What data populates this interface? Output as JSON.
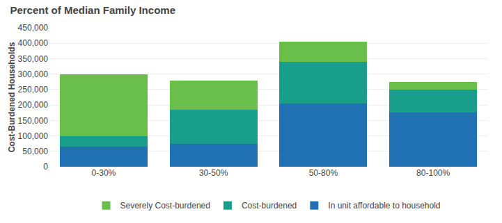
{
  "chart_data": {
    "type": "bar",
    "stacked": true,
    "title": "Percent of Median Family Income",
    "ylabel": "Cost-Burdened Households",
    "categories": [
      "0-30%",
      "30-50%",
      "50-80%",
      "80-100%"
    ],
    "series": [
      {
        "name": "In unit affordable to household",
        "color": "#2070b4",
        "values": [
          65000,
          75000,
          205000,
          175000
        ]
      },
      {
        "name": "Cost-burdened",
        "color": "#1a9e8c",
        "values": [
          35000,
          110000,
          135000,
          75000
        ]
      },
      {
        "name": "Severely Cost-burdened",
        "color": "#6abf4b",
        "values": [
          200000,
          95000,
          65000,
          25000
        ]
      }
    ],
    "ylim": [
      0,
      450000
    ],
    "yticks": [
      0,
      {
        "value": 50000,
        "label": "50,000"
      },
      {
        "value": 100000,
        "label": "100,000"
      },
      {
        "value": 150000,
        "label": "150,000"
      },
      {
        "value": 200000,
        "label": "200,000"
      },
      {
        "value": 250000,
        "label": "250,000"
      },
      {
        "value": 300000,
        "label": "300,000"
      },
      {
        "value": 350000,
        "label": "350,000"
      },
      {
        "value": 400000,
        "label": "400,000"
      },
      {
        "value": 450000,
        "label": "450,000"
      }
    ],
    "grid": true,
    "legend": "bottom"
  }
}
